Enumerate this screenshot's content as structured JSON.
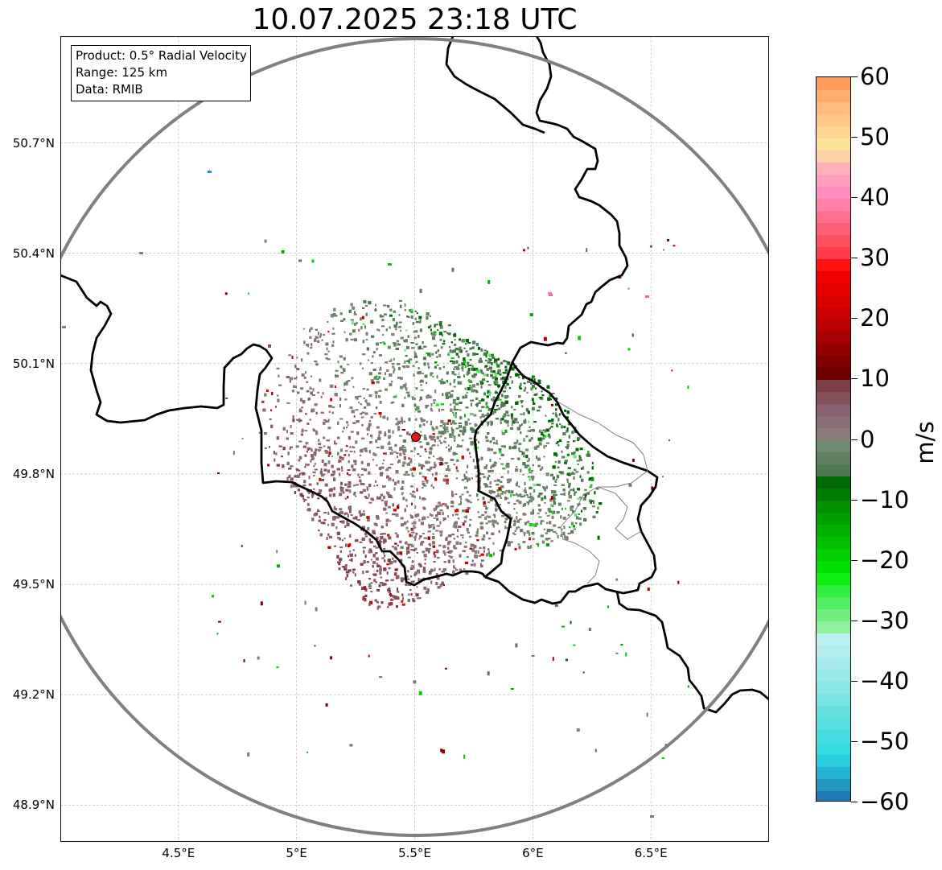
{
  "title": "10.07.2025 23:18 UTC",
  "info_box": {
    "product": "Product: 0.5° Radial Velocity",
    "range": "Range: 125 km",
    "data": "Data: RMIB"
  },
  "map": {
    "lon_range": [
      4.0,
      7.0
    ],
    "lat_range": [
      48.8,
      50.99
    ],
    "lat_ticks": [
      {
        "value": 50.7,
        "label": "50.7°N"
      },
      {
        "value": 50.4,
        "label": "50.4°N"
      },
      {
        "value": 50.1,
        "label": "50.1°N"
      },
      {
        "value": 49.8,
        "label": "49.8°N"
      },
      {
        "value": 49.5,
        "label": "49.5°N"
      },
      {
        "value": 49.2,
        "label": "49.2°N"
      },
      {
        "value": 48.9,
        "label": "48.9°N"
      }
    ],
    "lon_ticks": [
      {
        "value": 4.5,
        "label": "4.5°E"
      },
      {
        "value": 5.0,
        "label": "5°E"
      },
      {
        "value": 5.5,
        "label": "5.5°E"
      },
      {
        "value": 6.0,
        "label": "6°E"
      },
      {
        "value": 6.5,
        "label": "6.5°E"
      }
    ],
    "gridlines": true,
    "radar_site": {
      "lon": 5.505,
      "lat": 49.914,
      "color": "#e31a1c"
    },
    "range_ring_color": "#808080",
    "border_color": "#000000",
    "region_border_color": "#808080"
  },
  "colorbar": {
    "unit": "m/s",
    "min": -60,
    "max": 60,
    "ticks": [
      {
        "value": 60,
        "label": "60"
      },
      {
        "value": 50,
        "label": "50"
      },
      {
        "value": 40,
        "label": "40"
      },
      {
        "value": 30,
        "label": "30"
      },
      {
        "value": 20,
        "label": "20"
      },
      {
        "value": 10,
        "label": "10"
      },
      {
        "value": 0,
        "label": "0"
      },
      {
        "value": -10,
        "label": "−10"
      },
      {
        "value": -20,
        "label": "−20"
      },
      {
        "value": -30,
        "label": "−30"
      },
      {
        "value": -40,
        "label": "−40"
      },
      {
        "value": -50,
        "label": "−50"
      },
      {
        "value": -60,
        "label": "−60"
      }
    ],
    "bands": [
      {
        "from": -60,
        "to": -58,
        "color": "#1f78b4"
      },
      {
        "from": -58,
        "to": -56,
        "color": "#2596be"
      },
      {
        "from": -56,
        "to": -54,
        "color": "#25b4d2"
      },
      {
        "from": -54,
        "to": -52,
        "color": "#29cddb"
      },
      {
        "from": -52,
        "to": -50,
        "color": "#35dbdf"
      },
      {
        "from": -50,
        "to": -48,
        "color": "#44dee0"
      },
      {
        "from": -48,
        "to": -46,
        "color": "#55e0e2"
      },
      {
        "from": -46,
        "to": -44,
        "color": "#66e2e3"
      },
      {
        "from": -44,
        "to": -42,
        "color": "#78e4e5"
      },
      {
        "from": -42,
        "to": -40,
        "color": "#8ae6e6"
      },
      {
        "from": -40,
        "to": -38,
        "color": "#99e9e9"
      },
      {
        "from": -38,
        "to": -36,
        "color": "#a6ebeb"
      },
      {
        "from": -36,
        "to": -34,
        "color": "#b3eeee"
      },
      {
        "from": -34,
        "to": -32,
        "color": "#bff0f0"
      },
      {
        "from": -32,
        "to": -30,
        "color": "#90f0a0"
      },
      {
        "from": -30,
        "to": -28,
        "color": "#70ef80"
      },
      {
        "from": -28,
        "to": -26,
        "color": "#50ee60"
      },
      {
        "from": -26,
        "to": -24,
        "color": "#30ee40"
      },
      {
        "from": -24,
        "to": -22,
        "color": "#10ee10"
      },
      {
        "from": -22,
        "to": -20,
        "color": "#00e000"
      },
      {
        "from": -20,
        "to": -18,
        "color": "#00d000"
      },
      {
        "from": -18,
        "to": -16,
        "color": "#00c000"
      },
      {
        "from": -16,
        "to": -14,
        "color": "#00b000"
      },
      {
        "from": -14,
        "to": -12,
        "color": "#00a000"
      },
      {
        "from": -12,
        "to": -10,
        "color": "#009000"
      },
      {
        "from": -10,
        "to": -8,
        "color": "#007c00"
      },
      {
        "from": -8,
        "to": -6,
        "color": "#006a00"
      },
      {
        "from": -6,
        "to": -4,
        "color": "#4f7a4f"
      },
      {
        "from": -4,
        "to": -2,
        "color": "#5f8060"
      },
      {
        "from": -2,
        "to": 0,
        "color": "#708a70"
      },
      {
        "from": 0,
        "to": 2,
        "color": "#8a7a78"
      },
      {
        "from": 2,
        "to": 4,
        "color": "#8a6e76"
      },
      {
        "from": 4,
        "to": 6,
        "color": "#886070"
      },
      {
        "from": 6,
        "to": 8,
        "color": "#84505a"
      },
      {
        "from": 8,
        "to": 10,
        "color": "#7a4046"
      },
      {
        "from": 10,
        "to": 12,
        "color": "#6e0000"
      },
      {
        "from": 12,
        "to": 14,
        "color": "#800000"
      },
      {
        "from": 14,
        "to": 16,
        "color": "#930000"
      },
      {
        "from": 16,
        "to": 18,
        "color": "#a60000"
      },
      {
        "from": 18,
        "to": 20,
        "color": "#b80000"
      },
      {
        "from": 20,
        "to": 22,
        "color": "#c80000"
      },
      {
        "from": 22,
        "to": 24,
        "color": "#d80000"
      },
      {
        "from": 24,
        "to": 26,
        "color": "#e60000"
      },
      {
        "from": 26,
        "to": 28,
        "color": "#f20000"
      },
      {
        "from": 28,
        "to": 30,
        "color": "#ff1010"
      },
      {
        "from": 30,
        "to": 32,
        "color": "#ff3a4a"
      },
      {
        "from": 32,
        "to": 34,
        "color": "#ff5060"
      },
      {
        "from": 34,
        "to": 36,
        "color": "#ff6078"
      },
      {
        "from": 36,
        "to": 38,
        "color": "#ff7090"
      },
      {
        "from": 38,
        "to": 40,
        "color": "#ff80a8"
      },
      {
        "from": 40,
        "to": 42,
        "color": "#ff8ec0"
      },
      {
        "from": 42,
        "to": 44,
        "color": "#ff9ebf"
      },
      {
        "from": 44,
        "to": 46,
        "color": "#ffb0b8"
      },
      {
        "from": 46,
        "to": 48,
        "color": "#ffd0a8"
      },
      {
        "from": 48,
        "to": 50,
        "color": "#ffe29a"
      },
      {
        "from": 50,
        "to": 52,
        "color": "#ffd590"
      },
      {
        "from": 52,
        "to": 54,
        "color": "#ffc888"
      },
      {
        "from": 54,
        "to": 56,
        "color": "#ffbc80"
      },
      {
        "from": 56,
        "to": 58,
        "color": "#ffac70"
      },
      {
        "from": 58,
        "to": 60,
        "color": "#ff9c5c"
      }
    ]
  }
}
